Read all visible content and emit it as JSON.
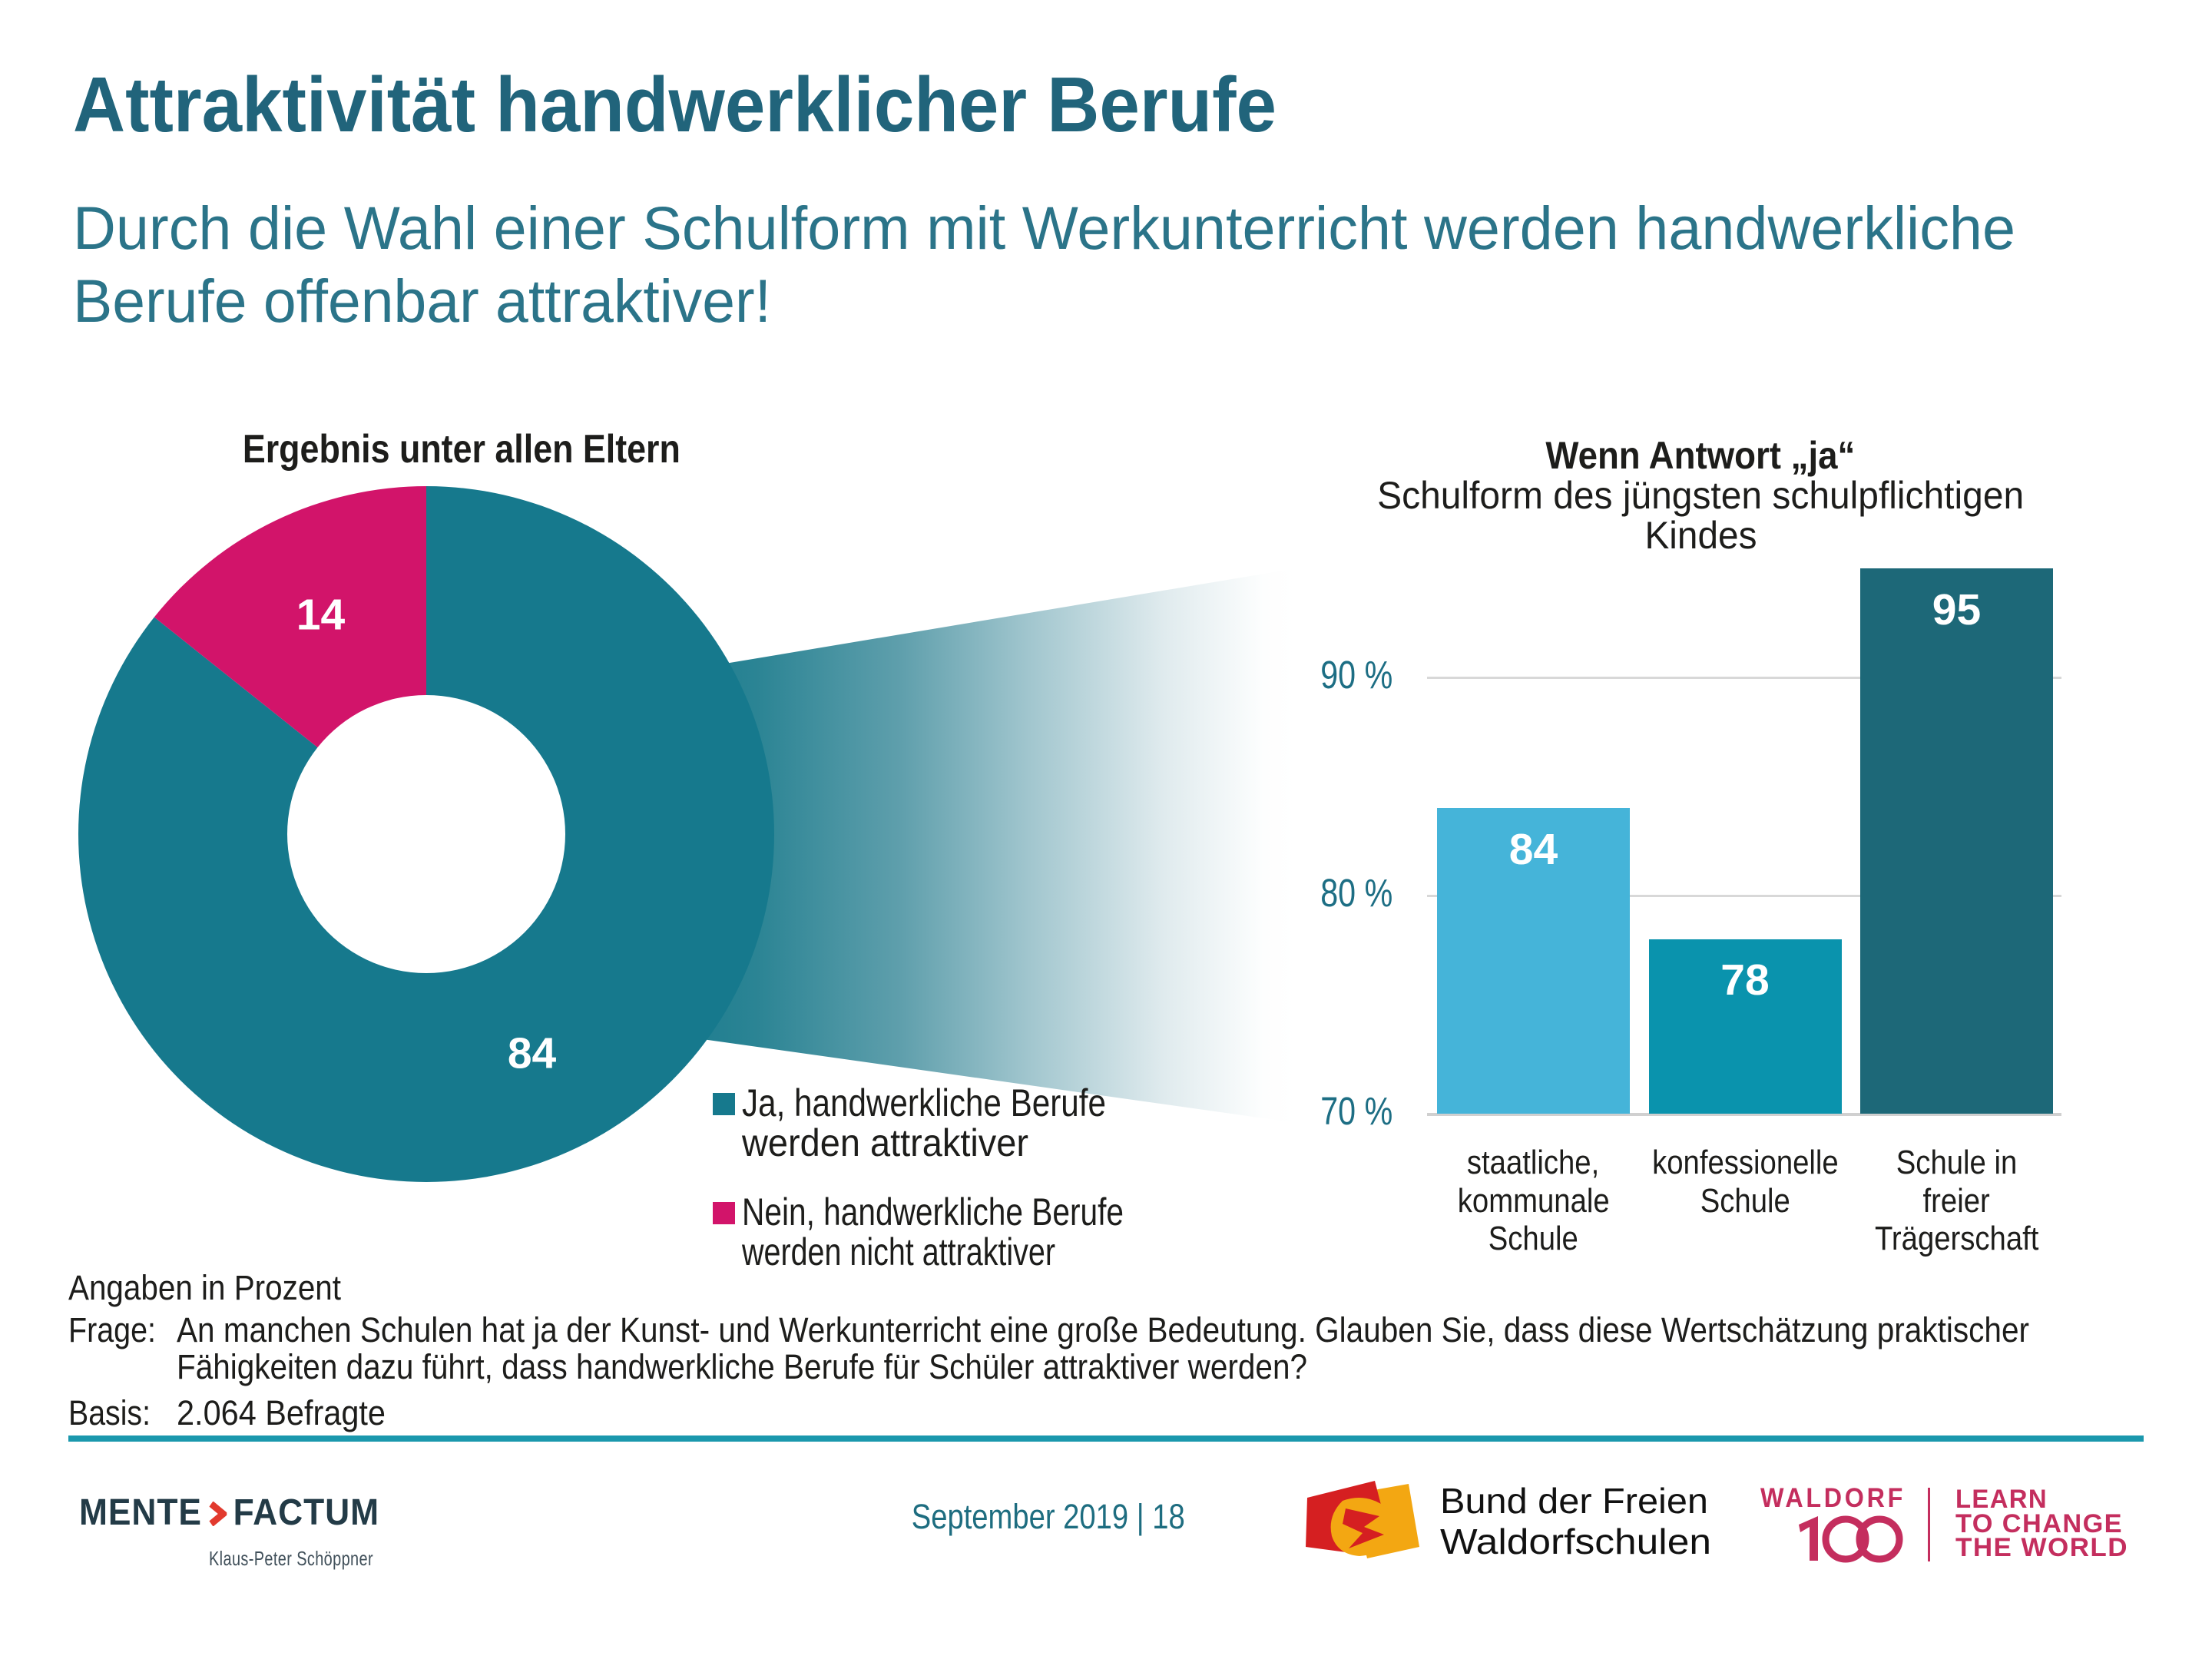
{
  "slide": {
    "title": "Attraktivität handwerklicher Berufe",
    "subtitle_lines": [
      "Durch die Wahl einer Schulform mit Werkunterricht werden handwerkliche",
      "Berufe offenbar attraktiver!"
    ],
    "note": "Angaben in Prozent",
    "frage_label": "Frage:",
    "frage_lines": [
      "An manchen Schulen hat ja der Kunst- und Werkunterricht eine große Bedeutung. Glauben Sie, dass diese Wertschätzung praktischer",
      "Fähigkeiten dazu führt, dass handwerkliche Berufe für Schüler attraktiver werden?"
    ],
    "basis_label": "Basis:",
    "basis_value": "2.064 Befragte"
  },
  "chart_data": [
    {
      "type": "pie",
      "title": "Ergebnis unter allen Eltern",
      "labels": [
        "Ja, handwerkliche Berufe werden attraktiver",
        "Nein, handwerkliche Berufe werden nicht attraktiver"
      ],
      "values": [
        84,
        14
      ],
      "colors": [
        "#16798d",
        "#d2146a"
      ],
      "donut": true,
      "units": "Prozent"
    },
    {
      "type": "bar",
      "title_lines": [
        "Wenn Antwort „ja“",
        "Schulform des jüngsten schulpflichtigen",
        "Kindes"
      ],
      "categories": [
        [
          "staatliche,",
          "kommunale",
          "Schule"
        ],
        [
          "konfessionelle",
          "Schule"
        ],
        [
          "Schule in",
          "freier",
          "Trägerschaft"
        ]
      ],
      "values": [
        84,
        78,
        95
      ],
      "bar_colors": [
        "#45b4d9",
        "#0a93ad",
        "#1d6878"
      ],
      "ylim": [
        70,
        100
      ],
      "yticks": [
        90,
        80,
        70
      ],
      "ytick_labels": [
        "90 %",
        "80 %",
        "70 %"
      ],
      "grid": true,
      "legend_position": "none"
    }
  ],
  "legend": {
    "items": [
      {
        "color": "#16798d",
        "lines": [
          "Ja, handwerkliche Berufe",
          "werden attraktiver"
        ]
      },
      {
        "color": "#d2146a",
        "lines": [
          "Nein, handwerkliche Berufe",
          "werden nicht attraktiver"
        ]
      }
    ]
  },
  "footer": {
    "mente_left": "MENTE",
    "mente_right": "FACTUM",
    "mente_sub": "Klaus-Peter Schöppner",
    "date_page": "September 2019 | 18",
    "bund_lines": [
      "Bund der Freien",
      "Waldorfschulen"
    ],
    "waldorf_word": "WALDORF",
    "waldorf_number": "100",
    "learn_lines": [
      "LEARN",
      "TO CHANGE",
      "THE WORLD"
    ]
  },
  "colors": {
    "title": "#21647b",
    "subtitle": "#2b7489",
    "dark_text": "#1d1d1b",
    "axis_label": "#1d6e84",
    "gridline": "#d8d8d8",
    "rule": "#1b98ad",
    "beam_start": "#16798d",
    "sept": "#1e6d80",
    "mente_dark": "#233b47",
    "mente_red": "#e23a2e",
    "waldorf_crimson": "#c42e5e",
    "bund_red": "#d51f21",
    "bund_orange": "#f3a712",
    "bar_label": "#ffffff"
  }
}
